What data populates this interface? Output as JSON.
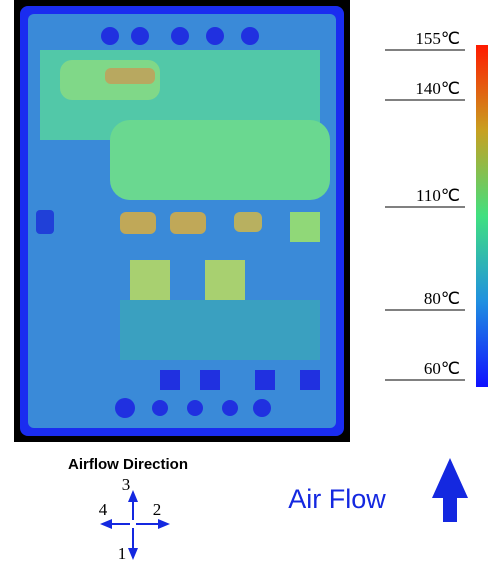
{
  "thermal_scale": {
    "labels": [
      "155℃",
      "140℃",
      "110℃",
      "80℃",
      "60℃"
    ]
  },
  "airflow_legend": {
    "title": "Airflow Direction",
    "directions": [
      "3",
      "2",
      "4",
      "1"
    ]
  },
  "air_flow_label": "Air Flow"
}
